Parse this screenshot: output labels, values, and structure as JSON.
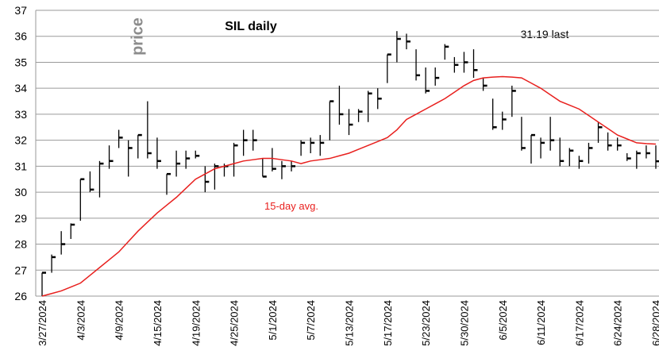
{
  "chart_data": {
    "type": "hlc",
    "title": "SIL daily",
    "y_label": "price",
    "annotation": "31.19  last",
    "categories": [
      "3/27/2024",
      null,
      null,
      null,
      "4/3/2024",
      null,
      null,
      null,
      "4/9/2024",
      null,
      null,
      null,
      "4/15/2024",
      null,
      null,
      null,
      "4/19/2024",
      null,
      null,
      null,
      "4/25/2024",
      null,
      null,
      null,
      "5/1/2024",
      null,
      null,
      null,
      "5/7/2024",
      null,
      null,
      null,
      "5/13/2024",
      null,
      null,
      null,
      "5/17/2024",
      null,
      null,
      null,
      "5/23/2024",
      null,
      null,
      null,
      "5/30/2024",
      null,
      null,
      null,
      "6/5/2024",
      null,
      null,
      null,
      "6/11/2024",
      null,
      null,
      null,
      "6/17/2024",
      null,
      null,
      null,
      "6/24/2024",
      null,
      null,
      null,
      "6/28/2024"
    ],
    "high": [
      26.9,
      27.6,
      28.5,
      28.8,
      30.5,
      30.8,
      31.2,
      31.8,
      32.4,
      32.0,
      32.2,
      33.5,
      32.1,
      30.7,
      31.6,
      31.6,
      31.6,
      31.0,
      31.1,
      31.1,
      31.9,
      32.4,
      32.4,
      31.3,
      31.7,
      31.2,
      31.2,
      32.0,
      32.1,
      32.2,
      33.5,
      34.1,
      33.2,
      33.2,
      33.9,
      34.0,
      35.3,
      36.2,
      36.1,
      35.5,
      34.8,
      34.8,
      35.7,
      35.2,
      35.4,
      35.5,
      34.4,
      33.6,
      33.1,
      34.1,
      32.9,
      32.2,
      32.1,
      32.9,
      32.1,
      31.7,
      31.4,
      31.9,
      32.7,
      32.3,
      32.1,
      31.5,
      31.6,
      31.8,
      31.8
    ],
    "low": [
      26.0,
      26.9,
      27.6,
      28.2,
      28.9,
      30.0,
      29.8,
      30.9,
      31.7,
      30.6,
      31.3,
      31.3,
      30.9,
      29.9,
      30.6,
      30.9,
      31.3,
      30.0,
      30.1,
      30.6,
      30.6,
      31.4,
      31.6,
      30.6,
      30.8,
      30.5,
      30.8,
      31.4,
      31.5,
      31.4,
      32.0,
      32.6,
      32.2,
      32.7,
      32.7,
      33.2,
      34.2,
      35.0,
      35.5,
      34.3,
      33.8,
      34.1,
      35.1,
      34.6,
      34.6,
      34.4,
      33.9,
      32.4,
      32.4,
      32.9,
      31.6,
      31.1,
      31.3,
      31.6,
      31.0,
      31.0,
      30.9,
      31.1,
      31.9,
      31.6,
      31.6,
      31.2,
      30.9,
      31.3,
      30.9
    ],
    "close": [
      26.9,
      27.5,
      28.0,
      28.75,
      30.5,
      30.1,
      31.1,
      31.2,
      32.1,
      31.7,
      32.2,
      31.5,
      31.2,
      30.7,
      31.1,
      31.3,
      31.4,
      30.4,
      31.0,
      31.0,
      31.8,
      32.0,
      32.0,
      30.6,
      30.9,
      31.0,
      31.0,
      31.9,
      31.9,
      31.9,
      33.5,
      33.0,
      32.6,
      33.1,
      33.8,
      33.6,
      35.3,
      35.9,
      35.8,
      34.5,
      33.9,
      34.4,
      35.6,
      34.9,
      35.0,
      34.7,
      34.1,
      32.5,
      32.8,
      33.9,
      31.7,
      32.2,
      31.9,
      32.0,
      31.2,
      31.6,
      31.2,
      31.7,
      32.5,
      31.8,
      31.8,
      31.3,
      31.5,
      31.5,
      31.19
    ],
    "bar_color": "#000000",
    "series": [
      {
        "name": "15-day avg.",
        "color": "#e8201e",
        "values": [
          26.0,
          26.1,
          26.2,
          26.35,
          26.5,
          26.8,
          27.1,
          27.4,
          27.7,
          28.1,
          28.5,
          28.85,
          29.2,
          29.5,
          29.8,
          30.15,
          30.5,
          30.7,
          30.9,
          31.0,
          31.1,
          31.2,
          31.25,
          31.3,
          31.3,
          31.25,
          31.2,
          31.1,
          31.2,
          31.25,
          31.3,
          31.4,
          31.5,
          31.65,
          31.8,
          31.95,
          32.1,
          32.4,
          32.8,
          33.0,
          33.2,
          33.4,
          33.6,
          33.85,
          34.1,
          34.3,
          34.4,
          34.43,
          34.45,
          34.43,
          34.4,
          34.2,
          34.0,
          33.75,
          33.5,
          33.35,
          33.2,
          32.95,
          32.7,
          32.45,
          32.2,
          32.05,
          31.9,
          31.87,
          31.85
        ]
      }
    ],
    "ylim": [
      26,
      37
    ],
    "yticks": [
      26,
      27,
      28,
      29,
      30,
      31,
      32,
      33,
      34,
      35,
      36,
      37
    ],
    "grid": true
  }
}
